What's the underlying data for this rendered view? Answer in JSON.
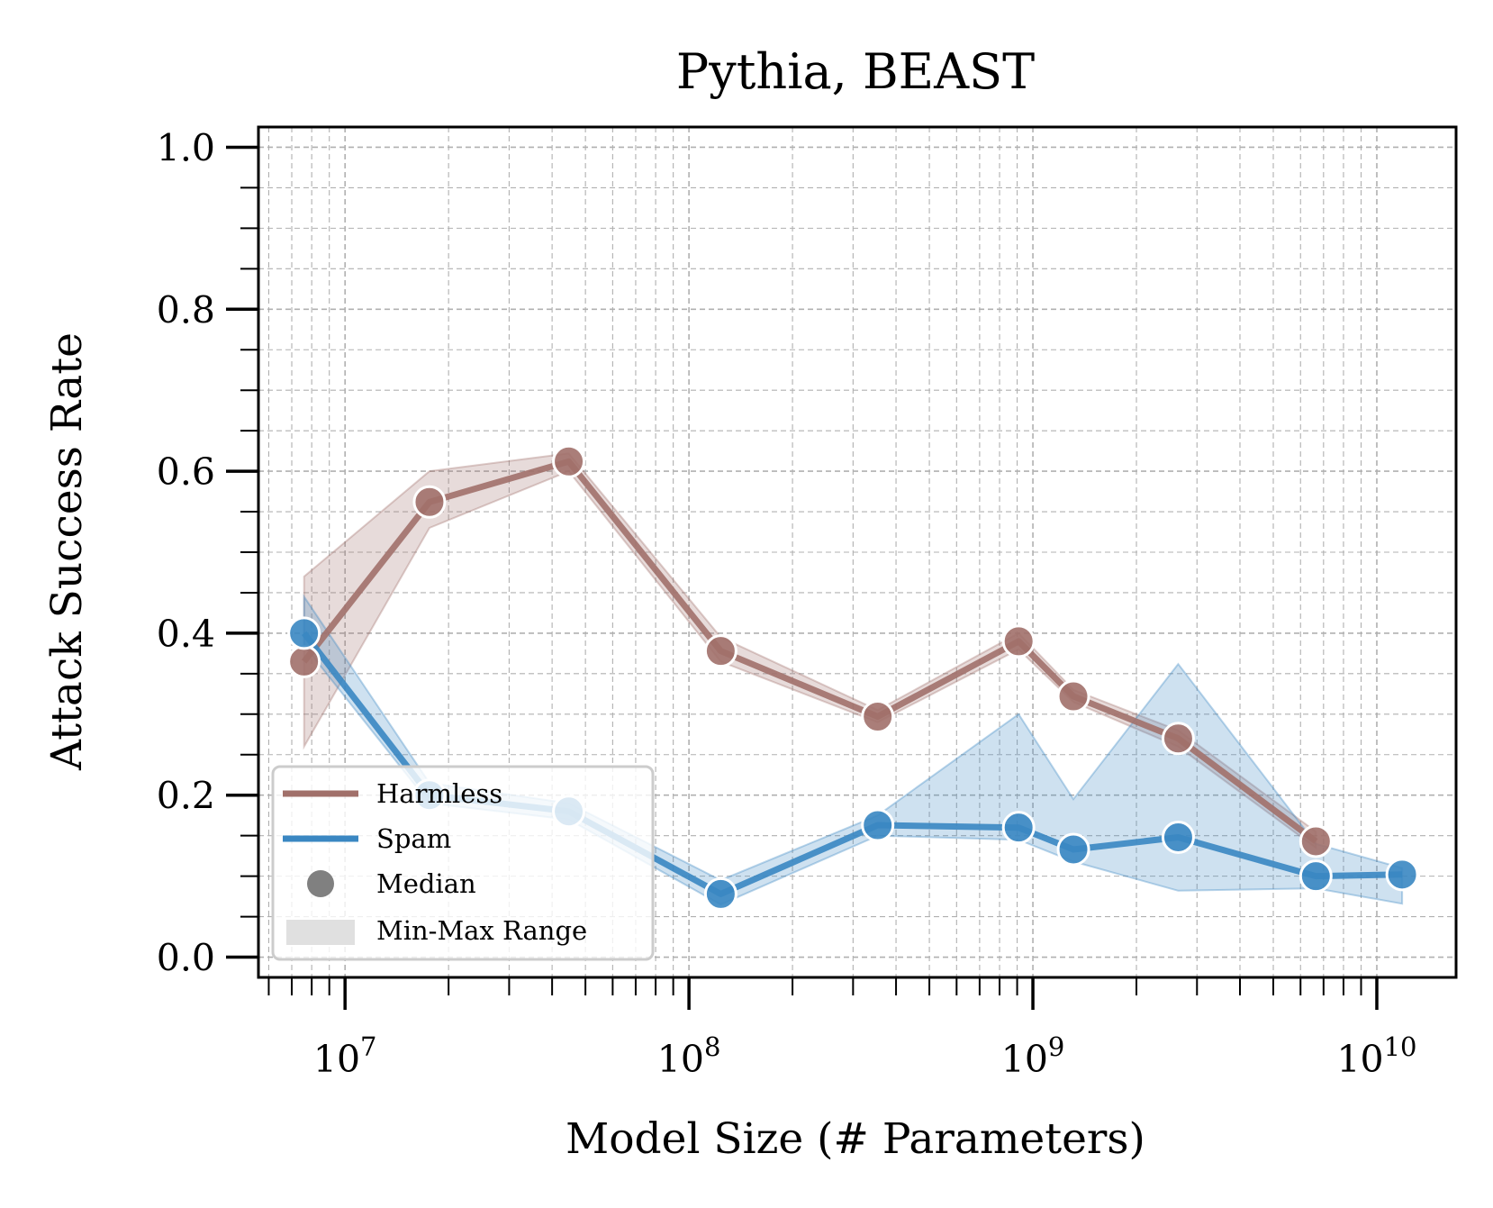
{
  "chart_data": {
    "type": "line",
    "title": "Pythia, BEAST",
    "xlabel": "Model Size (# Parameters)",
    "ylabel": "Attack Success Rate",
    "xscale": "log",
    "xlim": [
      5600000,
      17000000000
    ],
    "ylim": [
      -0.025,
      1.025
    ],
    "x_ticks": [
      {
        "value": 10000000,
        "base": "10",
        "exp": "7"
      },
      {
        "value": 100000000,
        "base": "10",
        "exp": "8"
      },
      {
        "value": 1000000000,
        "base": "10",
        "exp": "9"
      },
      {
        "value": 10000000000,
        "base": "10",
        "exp": "10"
      }
    ],
    "y_ticks": [
      {
        "value": 0.0,
        "label": "0.0"
      },
      {
        "value": 0.2,
        "label": "0.2"
      },
      {
        "value": 0.4,
        "label": "0.4"
      },
      {
        "value": 0.6,
        "label": "0.6"
      },
      {
        "value": 0.8,
        "label": "0.8"
      },
      {
        "value": 1.0,
        "label": "1.0"
      }
    ],
    "grid": true,
    "legend_position": "lower-left",
    "legend": [
      {
        "label": "Harmless",
        "kind": "line",
        "color": "#a1706a"
      },
      {
        "label": "Spam",
        "kind": "line",
        "color": "#3a87c2"
      },
      {
        "label": "Median",
        "kind": "marker",
        "color": "#808080"
      },
      {
        "label": "Min-Max Range",
        "kind": "band",
        "color": "#e0e0e0"
      }
    ],
    "series": [
      {
        "name": "Harmless",
        "color": "#a1706a",
        "x": [
          7600000,
          17600000,
          44700000,
          123700000,
          353800000,
          908800000,
          1311600000,
          2646000000,
          6650000000
        ],
        "median": [
          0.365,
          0.562,
          0.612,
          0.378,
          0.297,
          0.39,
          0.322,
          0.27,
          0.143
        ],
        "min": [
          0.26,
          0.53,
          0.6,
          0.365,
          0.29,
          0.38,
          0.315,
          0.26,
          0.135
        ],
        "max": [
          0.47,
          0.6,
          0.622,
          0.395,
          0.305,
          0.4,
          0.33,
          0.28,
          0.155
        ]
      },
      {
        "name": "Spam",
        "color": "#3a87c2",
        "x": [
          7600000,
          17600000,
          44700000,
          123700000,
          353800000,
          908800000,
          1311600000,
          2646000000,
          6650000000,
          11846000000
        ],
        "median": [
          0.4,
          0.2,
          0.18,
          0.078,
          0.163,
          0.16,
          0.133,
          0.148,
          0.1,
          0.102
        ],
        "min": [
          0.385,
          0.19,
          0.17,
          0.065,
          0.15,
          0.145,
          0.118,
          0.082,
          0.085,
          0.066
        ],
        "max": [
          0.445,
          0.215,
          0.19,
          0.095,
          0.175,
          0.3,
          0.195,
          0.362,
          0.14,
          0.11
        ]
      }
    ]
  }
}
